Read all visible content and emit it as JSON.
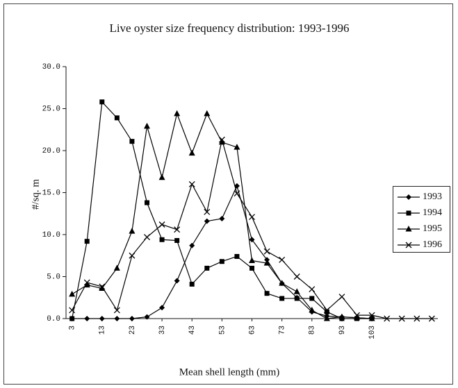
{
  "chart_data": {
    "type": "line",
    "title": "Live oyster size frequency distribution: 1993-1996",
    "x_label": "Mean shell length (mm)",
    "y_label": "#/sq. m",
    "x": [
      3,
      8,
      13,
      18,
      23,
      28,
      33,
      38,
      43,
      48,
      53,
      58,
      63,
      68,
      73,
      78,
      83,
      88,
      93,
      98,
      103,
      108,
      113,
      118,
      123
    ],
    "xlim": [
      1,
      125
    ],
    "xticks": [
      3,
      13,
      23,
      33,
      43,
      53,
      63,
      73,
      83,
      93,
      103
    ],
    "ylim": [
      0,
      30
    ],
    "yticks": [
      {
        "value": 0,
        "label": "0.0"
      },
      {
        "value": 5,
        "label": "5.0"
      },
      {
        "value": 10,
        "label": "10.0"
      },
      {
        "value": 15,
        "label": "15.0"
      },
      {
        "value": 20,
        "label": "20.0"
      },
      {
        "value": 25,
        "label": "25.0"
      },
      {
        "value": 30,
        "label": "30.0"
      }
    ],
    "grid": false,
    "legend": "right",
    "series": [
      {
        "name": "1993",
        "color": "#000000",
        "marker": "diamond",
        "values": [
          0,
          0,
          0,
          0,
          0,
          0.2,
          1.3,
          4.5,
          8.7,
          11.6,
          11.9,
          15.8,
          9.4,
          7.0,
          4.2,
          2.5,
          0.8,
          0.3,
          0.2,
          0.1,
          0,
          null,
          null,
          null,
          null
        ]
      },
      {
        "name": "1994",
        "color": "#000000",
        "marker": "square",
        "values": [
          0,
          9.2,
          25.8,
          23.9,
          21.1,
          13.8,
          9.4,
          9.3,
          4.1,
          6.0,
          6.8,
          7.4,
          6.0,
          3.0,
          2.4,
          2.4,
          2.4,
          0.8,
          0,
          0,
          0,
          null,
          null,
          null,
          null
        ]
      },
      {
        "name": "1995",
        "color": "#000000",
        "marker": "triangle",
        "values": [
          2.9,
          4.0,
          3.6,
          6.0,
          10.4,
          22.9,
          16.8,
          24.4,
          19.7,
          24.4,
          21.0,
          20.4,
          6.9,
          6.6,
          4.2,
          3.2,
          1.0,
          0,
          0.2,
          0.1,
          0,
          null,
          null,
          null,
          null
        ]
      },
      {
        "name": "1996",
        "color": "#000000",
        "marker": "x",
        "values": [
          1.0,
          4.3,
          3.8,
          1.0,
          7.5,
          9.7,
          11.2,
          10.6,
          16.0,
          12.7,
          21.3,
          14.9,
          12.1,
          8.0,
          7.0,
          5.0,
          3.5,
          1.0,
          2.6,
          0.4,
          0.4,
          0,
          0,
          0,
          0
        ]
      }
    ]
  }
}
